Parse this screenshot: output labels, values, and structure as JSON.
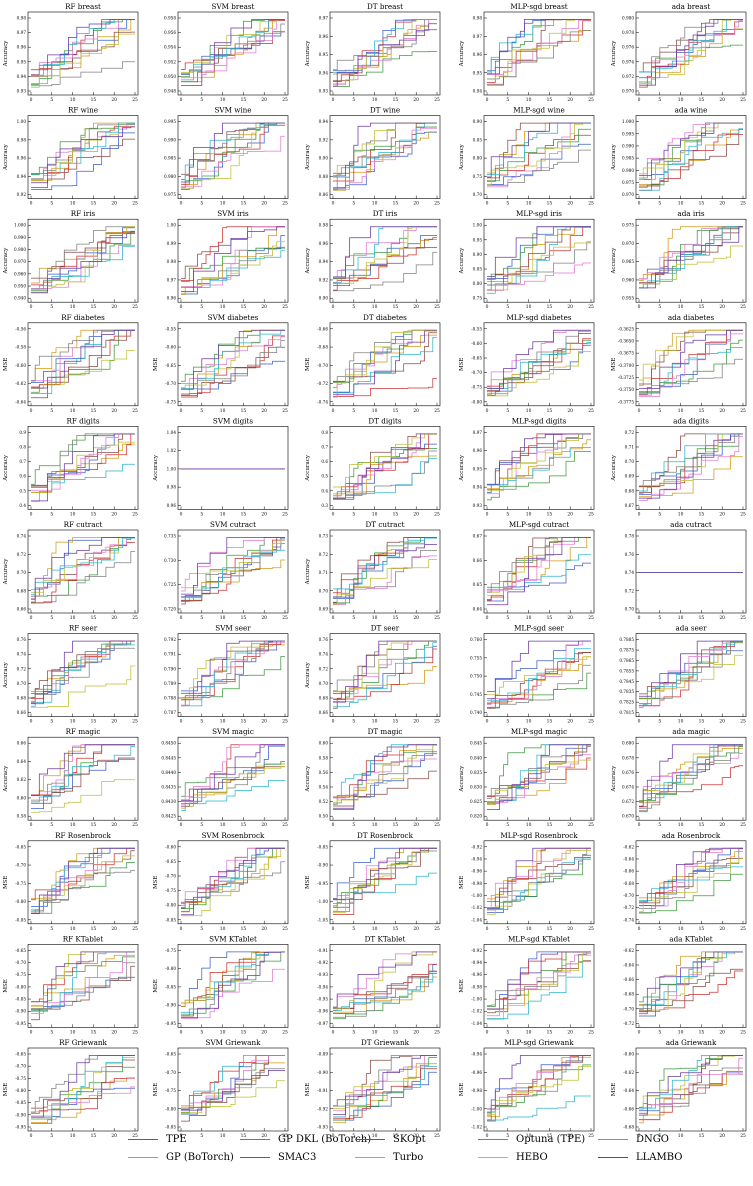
{
  "chart_data": {
    "type": "line",
    "layout": "grid of 11 rows by 5 columns of step-line convergence plots",
    "x_ticks": [
      0,
      5,
      10,
      15,
      20,
      25
    ],
    "xlim": [
      0,
      25
    ],
    "legend_position": "bottom",
    "series": [
      {
        "name": "TPE",
        "color": "#3a5fcd"
      },
      {
        "name": "GP (BoTorch)",
        "color": "#d39a16"
      },
      {
        "name": "GP DKL (BoTorch)",
        "color": "#3f9a3f"
      },
      {
        "name": "SMAC3",
        "color": "#cc3333"
      },
      {
        "name": "SKOpt",
        "color": "#8a4b46"
      },
      {
        "name": "Turbo",
        "color": "#e27ad2"
      },
      {
        "name": "Optuna (TPE)",
        "color": "#808080"
      },
      {
        "name": "HEBO",
        "color": "#bfbf33"
      },
      {
        "name": "DNGO",
        "color": "#2bb5cf"
      },
      {
        "name": "LLAMBO",
        "color": "#6a3aa5"
      }
    ],
    "panels": [
      {
        "title": "RF breast",
        "ylabel": "Accuracy",
        "yticks": [
          "0.93",
          "0.94",
          "0.95",
          "0.96",
          "0.97",
          "0.98"
        ]
      },
      {
        "title": "SVM breast",
        "ylabel": "",
        "yticks": [
          "0.948",
          "0.950",
          "0.952",
          "0.954",
          "0.956",
          "0.958"
        ]
      },
      {
        "title": "DT breast",
        "ylabel": "Accuracy",
        "yticks": [
          "0.93",
          "0.94",
          "0.95",
          "0.96",
          "0.97"
        ]
      },
      {
        "title": "MLP-sgd breast",
        "ylabel": "Accuracy",
        "yticks": [
          "0.94",
          "0.95",
          "0.96",
          "0.97",
          "0.98"
        ]
      },
      {
        "title": "ada breast",
        "ylabel": "Accuracy",
        "yticks": [
          "0.970",
          "0.972",
          "0.974",
          "0.976",
          "0.978",
          "0.980"
        ]
      },
      {
        "title": "RF wine",
        "ylabel": "Accuracy",
        "yticks": [
          "0.92",
          "0.94",
          "0.96",
          "0.98",
          "1.00"
        ]
      },
      {
        "title": "SVM wine",
        "ylabel": "",
        "yticks": [
          "0.975",
          "0.980",
          "0.985",
          "0.990",
          "0.995"
        ]
      },
      {
        "title": "DT wine",
        "ylabel": "Accuracy",
        "yticks": [
          "0.86",
          "0.88",
          "0.90",
          "0.92",
          "0.94"
        ]
      },
      {
        "title": "MLP-sgd wine",
        "ylabel": "Accuracy",
        "yticks": [
          "0.70",
          "0.75",
          "0.80",
          "0.85",
          "0.90"
        ]
      },
      {
        "title": "ada wine",
        "ylabel": "Accuracy",
        "yticks": [
          "0.970",
          "0.975",
          "0.980",
          "0.985",
          "0.990",
          "0.995",
          "1.000"
        ]
      },
      {
        "title": "RF iris",
        "ylabel": "Accuracy",
        "yticks": [
          "0.940",
          "0.950",
          "0.960",
          "0.970",
          "0.980",
          "0.990",
          "1.000"
        ]
      },
      {
        "title": "SVM iris",
        "ylabel": "",
        "yticks": [
          "0.96",
          "0.97",
          "0.98",
          "0.99",
          "1.00"
        ]
      },
      {
        "title": "DT iris",
        "ylabel": "Accuracy",
        "yticks": [
          "0.90",
          "0.92",
          "0.94",
          "0.96",
          "0.98"
        ]
      },
      {
        "title": "MLP-sgd iris",
        "ylabel": "Accuracy",
        "yticks": [
          "0.75",
          "0.80",
          "0.85",
          "0.90",
          "0.95",
          "1.00"
        ]
      },
      {
        "title": "ada iris",
        "ylabel": "Accuracy",
        "yticks": [
          "0.955",
          "0.960",
          "0.965",
          "0.970",
          "0.975"
        ]
      },
      {
        "title": "RF diabetes",
        "ylabel": "MSE",
        "yticks": [
          "-0.64",
          "-0.62",
          "-0.60",
          "-0.58",
          "-0.56"
        ]
      },
      {
        "title": "SVM diabetes",
        "ylabel": "MSE",
        "yticks": [
          "-0.75",
          "-0.70",
          "-0.65",
          "-0.60",
          "-0.55"
        ]
      },
      {
        "title": "DT diabetes",
        "ylabel": "MSE",
        "yticks": [
          "-0.74",
          "-0.72",
          "-0.70",
          "-0.68",
          "-0.66"
        ]
      },
      {
        "title": "MLP-sgd diabetes",
        "ylabel": "MSE",
        "yticks": [
          "-0.80",
          "-0.75",
          "-0.70",
          "-0.65",
          "-0.60",
          "-0.55"
        ]
      },
      {
        "title": "ada diabetes",
        "ylabel": "MSE",
        "yticks": [
          "-0.3775",
          "-0.3750",
          "-0.3725",
          "-0.3700",
          "-0.3675",
          "-0.3650",
          "-0.3625"
        ]
      },
      {
        "title": "RF digits",
        "ylabel": "Accuracy",
        "yticks": [
          "0.4",
          "0.5",
          "0.6",
          "0.7",
          "0.8",
          "0.9"
        ]
      },
      {
        "title": "SVM digits",
        "ylabel": "Accuracy",
        "yticks": [
          "0.96",
          "0.98",
          "1.00",
          "1.02",
          "1.04"
        ]
      },
      {
        "title": "DT digits",
        "ylabel": "Accuracy",
        "yticks": [
          "0.3",
          "0.4",
          "0.5",
          "0.6",
          "0.7",
          "0.8"
        ]
      },
      {
        "title": "MLP-sgd digits",
        "ylabel": "Accuracy",
        "yticks": [
          "0.93",
          "0.94",
          "0.95",
          "0.96",
          "0.97"
        ]
      },
      {
        "title": "ada digits",
        "ylabel": "Accuracy",
        "yticks": [
          "0.67",
          "0.68",
          "0.69",
          "0.70",
          "0.71",
          "0.72"
        ]
      },
      {
        "title": "RF cutract",
        "ylabel": "Accuracy",
        "yticks": [
          "0.66",
          "0.68",
          "0.70",
          "0.72",
          "0.74"
        ]
      },
      {
        "title": "SVM cutract",
        "ylabel": "",
        "yticks": [
          "0.720",
          "0.725",
          "0.730",
          "0.735"
        ]
      },
      {
        "title": "DT cutract",
        "ylabel": "Accuracy",
        "yticks": [
          "0.69",
          "0.70",
          "0.71",
          "0.72",
          "0.73"
        ]
      },
      {
        "title": "MLP-sgd cutract",
        "ylabel": "",
        "yticks": [
          "0.64",
          "0.65",
          "0.66",
          "0.67"
        ]
      },
      {
        "title": "ada cutract",
        "ylabel": "",
        "yticks": [
          "0.70",
          "0.72",
          "0.74",
          "0.76",
          "0.78"
        ]
      },
      {
        "title": "RF seer",
        "ylabel": "Accuracy",
        "yticks": [
          "0.66",
          "0.68",
          "0.70",
          "0.72",
          "0.74",
          "0.76"
        ]
      },
      {
        "title": "SVM seer",
        "ylabel": "",
        "yticks": [
          "0.787",
          "0.788",
          "0.789",
          "0.790",
          "0.791",
          "0.792"
        ]
      },
      {
        "title": "DT seer",
        "ylabel": "Accuracy",
        "yticks": [
          "0.66",
          "0.68",
          "0.70",
          "0.72",
          "0.74",
          "0.76"
        ]
      },
      {
        "title": "MLP-sgd seer",
        "ylabel": "",
        "yticks": [
          "0.740",
          "0.745",
          "0.750",
          "0.755",
          "0.760"
        ]
      },
      {
        "title": "ada seer",
        "ylabel": "",
        "yticks": [
          "0.7815",
          "0.7825",
          "0.7835",
          "0.7845",
          "0.7855",
          "0.7865",
          "0.7875",
          "0.7885"
        ]
      },
      {
        "title": "RF magic",
        "ylabel": "Accuracy",
        "yticks": [
          "0.58",
          "0.60",
          "0.62",
          "0.64",
          "0.66"
        ]
      },
      {
        "title": "SVM magic",
        "ylabel": "",
        "yticks": [
          "0.8425",
          "0.8430",
          "0.8435",
          "0.8440",
          "0.8445",
          "0.8450"
        ]
      },
      {
        "title": "DT magic",
        "ylabel": "Accuracy",
        "yticks": [
          "0.50",
          "0.52",
          "0.54",
          "0.56",
          "0.58",
          "0.60"
        ]
      },
      {
        "title": "MLP-sgd magic",
        "ylabel": "Accuracy",
        "yticks": [
          "0.820",
          "0.825",
          "0.830",
          "0.835",
          "0.840",
          "0.845"
        ]
      },
      {
        "title": "ada magic",
        "ylabel": "Accuracy",
        "yticks": [
          "0.670",
          "0.672",
          "0.674",
          "0.676",
          "0.678",
          "0.680"
        ]
      },
      {
        "title": "RF Rosenbrock",
        "ylabel": "MSE",
        "yticks": [
          "-0.85",
          "-0.80",
          "-0.75",
          "-0.70",
          "-0.65"
        ]
      },
      {
        "title": "SVM Rosenbrock",
        "ylabel": "MSE",
        "yticks": [
          "-0.85",
          "-0.80",
          "-0.75",
          "-0.70",
          "-0.65",
          "-0.60"
        ]
      },
      {
        "title": "DT Rosenbrock",
        "ylabel": "MSE",
        "yticks": [
          "-1.05",
          "-1.00",
          "-0.95",
          "-0.90",
          "-0.85"
        ]
      },
      {
        "title": "MLP-sgd Rosenbrock",
        "ylabel": "MSE",
        "yticks": [
          "-1.04",
          "-1.02",
          "-1.00",
          "-0.98",
          "-0.96",
          "-0.94",
          "-0.92"
        ]
      },
      {
        "title": "ada Rosenbrock",
        "ylabel": "",
        "yticks": [
          "-0.74",
          "-0.72",
          "-0.70",
          "-0.68",
          "-0.66",
          "-0.64",
          "-0.62"
        ]
      },
      {
        "title": "RF KTablet",
        "ylabel": "MSE",
        "yticks": [
          "-0.95",
          "-0.90",
          "-0.85",
          "-0.80",
          "-0.75",
          "-0.70",
          "-0.65"
        ]
      },
      {
        "title": "SVM KTablet",
        "ylabel": "MSE",
        "yticks": [
          "-0.95",
          "-0.90",
          "-0.85",
          "-0.80",
          "-0.75"
        ]
      },
      {
        "title": "DT KTablet",
        "ylabel": "",
        "yticks": [
          "-0.97",
          "-0.96",
          "-0.95",
          "-0.94",
          "-0.93",
          "-0.92",
          "-0.91"
        ]
      },
      {
        "title": "MLP-sgd KTablet",
        "ylabel": "MSE",
        "yticks": [
          "-1.04",
          "-1.02",
          "-1.00",
          "-0.98",
          "-0.96",
          "-0.94",
          "-0.92"
        ]
      },
      {
        "title": "ada KTablet",
        "ylabel": "",
        "yticks": [
          "-0.72",
          "-0.70",
          "-0.68",
          "-0.66",
          "-0.64",
          "-0.62"
        ]
      },
      {
        "title": "RF Griewank",
        "ylabel": "MSE",
        "yticks": [
          "-0.95",
          "-0.90",
          "-0.85",
          "-0.80",
          "-0.75",
          "-0.70",
          "-0.65"
        ]
      },
      {
        "title": "SVM Griewank",
        "ylabel": "MSE",
        "yticks": [
          "-0.85",
          "-0.80",
          "-0.75",
          "-0.70",
          "-0.65"
        ]
      },
      {
        "title": "DT Griewank",
        "ylabel": "MSE",
        "yticks": [
          "-0.93",
          "-0.92",
          "-0.91",
          "-0.90",
          "-0.89"
        ]
      },
      {
        "title": "MLP-sgd Griewank",
        "ylabel": "MSE",
        "yticks": [
          "-1.02",
          "-1.00",
          "-0.98",
          "-0.96",
          "-0.94"
        ]
      },
      {
        "title": "ada Griewank",
        "ylabel": "MSE",
        "yticks": [
          "-0.68",
          "-0.66",
          "-0.64",
          "-0.62",
          "-0.60"
        ]
      }
    ]
  }
}
